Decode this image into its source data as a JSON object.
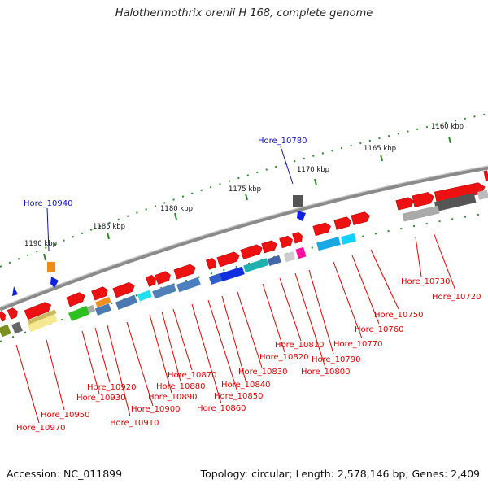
{
  "title": "Halothermothrix orenii H 168, complete genome",
  "footer": {
    "accession": "Accession: NC_011899",
    "summary": "Topology: circular; Length: 2,578,146 bp; Genes: 2,409"
  },
  "colors": {
    "backbone": "#8a8a8a",
    "tick": "#2a8a2a",
    "gene_forward": "#ee1111",
    "label_red": "#dd0000",
    "label_blue": "#1010c0"
  },
  "scale_labels": [
    "1160 kbp",
    "1165 kbp",
    "1170 kbp",
    "1175 kbp",
    "1180 kbp",
    "1185 kbp",
    "1190 kbp"
  ],
  "upper_labels": [
    "Hore_10780",
    "Hore_10940"
  ],
  "gene_labels": [
    "Hore_10720",
    "Hore_10730",
    "Hore_10750",
    "Hore_10760",
    "Hore_10770",
    "Hore_10790",
    "Hore_10800",
    "Hore_10810",
    "Hore_10820",
    "Hore_10830",
    "Hore_10840",
    "Hore_10850",
    "Hore_10860",
    "Hore_10870",
    "Hore_10880",
    "Hore_10890",
    "Hore_10900",
    "Hore_10910",
    "Hore_10920",
    "Hore_10930",
    "Hore_10950",
    "Hore_10970"
  ]
}
